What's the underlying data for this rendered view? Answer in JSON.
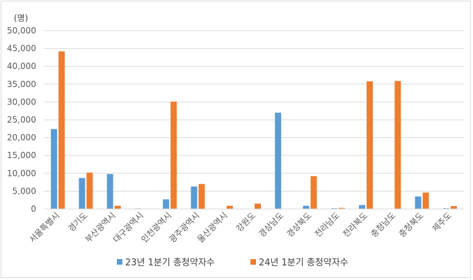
{
  "chart_data": {
    "type": "bar",
    "unit_label": "(명)",
    "categories": [
      "서울특별시",
      "경기도",
      "부산광역시",
      "대구광역시",
      "인천광역시",
      "광주광역시",
      "울산광역시",
      "강원도",
      "경상남도",
      "경상북도",
      "전라남도",
      "전라북도",
      "충청남도",
      "충청북도",
      "제주도"
    ],
    "series": [
      {
        "name": "23년 1분기 총청약자수",
        "color": "#5b9bd5",
        "values": [
          22400,
          8700,
          9800,
          150,
          2700,
          6300,
          0,
          0,
          27000,
          900,
          200,
          1100,
          100,
          3500,
          200
        ]
      },
      {
        "name": "24년 1분기 총청약자수",
        "color": "#ed7d31",
        "values": [
          44200,
          10200,
          900,
          100,
          30100,
          7000,
          900,
          1500,
          50,
          9200,
          300,
          35800,
          35900,
          4600,
          800
        ]
      }
    ],
    "yticks": [
      "0",
      "5,000",
      "10,000",
      "15,000",
      "20,000",
      "25,000",
      "30,000",
      "35,000",
      "40,000",
      "45,000",
      "50,000"
    ],
    "ylim": [
      0,
      50000
    ],
    "grid": true,
    "legend_position": "bottom"
  }
}
